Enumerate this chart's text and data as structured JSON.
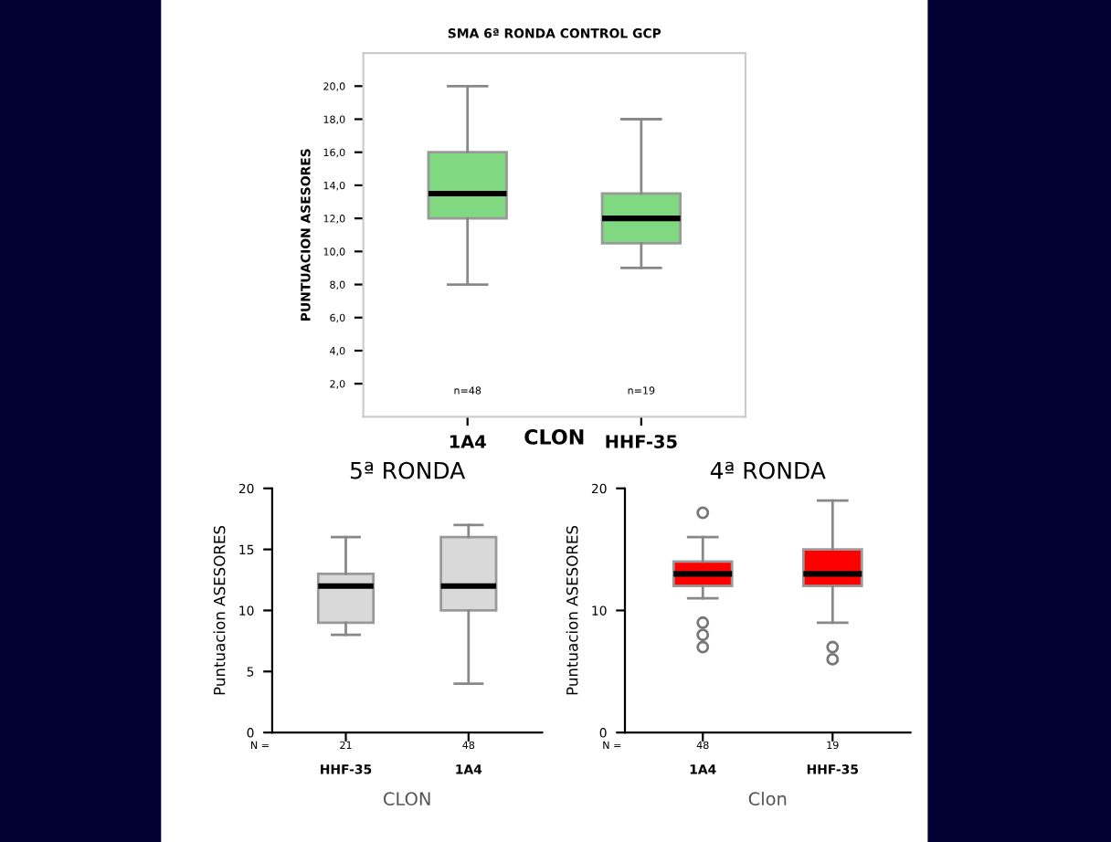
{
  "chart_data": [
    {
      "type": "box",
      "title": "SMA 6ª RONDA CONTROL GCP",
      "xlabel": "CLON",
      "ylabel": "PUNTUACION ASESORES",
      "categories": [
        "1A4",
        "HHF-35"
      ],
      "color": "#80d880",
      "ylim": [
        0,
        22
      ],
      "yticks": [
        {
          "value": 2,
          "label": "2,0"
        },
        {
          "value": 4,
          "label": "4,0"
        },
        {
          "value": 6,
          "label": "6,0"
        },
        {
          "value": 8,
          "label": "8,0"
        },
        {
          "value": 10,
          "label": "10,0"
        },
        {
          "value": 12,
          "label": "12,0"
        },
        {
          "value": 14,
          "label": "14,0"
        },
        {
          "value": 16,
          "label": "16,0"
        },
        {
          "value": 18,
          "label": "18,0"
        },
        {
          "value": 20,
          "label": "20,0"
        }
      ],
      "boxes": [
        {
          "low": 8,
          "q1": 12,
          "median": 13.5,
          "q3": 16,
          "high": 20
        },
        {
          "low": 9,
          "q1": 10.5,
          "median": 12,
          "q3": 13.5,
          "high": 18
        }
      ],
      "annotations": [
        "n=48",
        "n=19"
      ]
    },
    {
      "type": "box",
      "title": "5ª RONDA",
      "xlabel": "CLON",
      "ylabel": "Puntuacion ASESORES",
      "categories": [
        "HHF-35",
        "1A4"
      ],
      "color": "#d9d9d9",
      "ylim": [
        0,
        20
      ],
      "yticks": [
        0,
        5,
        10,
        15,
        20
      ],
      "boxes": [
        {
          "low": 8,
          "q1": 9,
          "median": 12,
          "q3": 13,
          "high": 16
        },
        {
          "low": 4,
          "q1": 10,
          "median": 12,
          "q3": 16,
          "high": 17
        }
      ],
      "annotations": [
        "N =",
        "21",
        "48"
      ]
    },
    {
      "type": "box",
      "title": "4ª RONDA",
      "xlabel": "Clon",
      "ylabel": "Puntuacion ASESORES",
      "categories": [
        "1A4",
        "HHF-35"
      ],
      "color": "#ff0000",
      "ylim": [
        0,
        20
      ],
      "yticks": [
        0,
        10,
        20
      ],
      "boxes": [
        {
          "low": 11,
          "q1": 12,
          "median": 13,
          "q3": 14,
          "high": 16,
          "outliers": [
            18,
            9,
            8,
            7
          ]
        },
        {
          "low": 9,
          "q1": 12,
          "median": 13,
          "q3": 15,
          "high": 19,
          "outliers": [
            7,
            6
          ]
        }
      ],
      "annotations": [
        "N =",
        "48",
        "19"
      ]
    }
  ]
}
